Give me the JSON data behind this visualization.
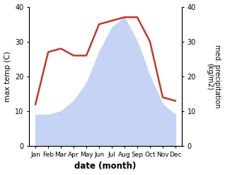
{
  "months": [
    "Jan",
    "Feb",
    "Mar",
    "Apr",
    "May",
    "Jun",
    "Jul",
    "Aug",
    "Sep",
    "Oct",
    "Nov",
    "Dec"
  ],
  "max_temp": [
    12,
    27,
    28,
    26,
    26,
    35,
    36,
    37,
    37,
    30,
    14,
    13
  ],
  "precipitation": [
    9,
    9,
    10,
    13,
    18,
    27,
    34,
    37,
    30,
    20,
    12,
    9
  ],
  "temp_color": "#c0392b",
  "precip_fill_color": "#c5d4f5",
  "background_color": "#ffffff",
  "xlabel": "date (month)",
  "ylabel_left": "max temp (C)",
  "ylabel_right": "med. precipitation\n(kg/m2)",
  "ylim_left": [
    0,
    40
  ],
  "ylim_right": [
    0,
    40
  ],
  "figsize": [
    3.18,
    2.47
  ],
  "dpi": 100
}
